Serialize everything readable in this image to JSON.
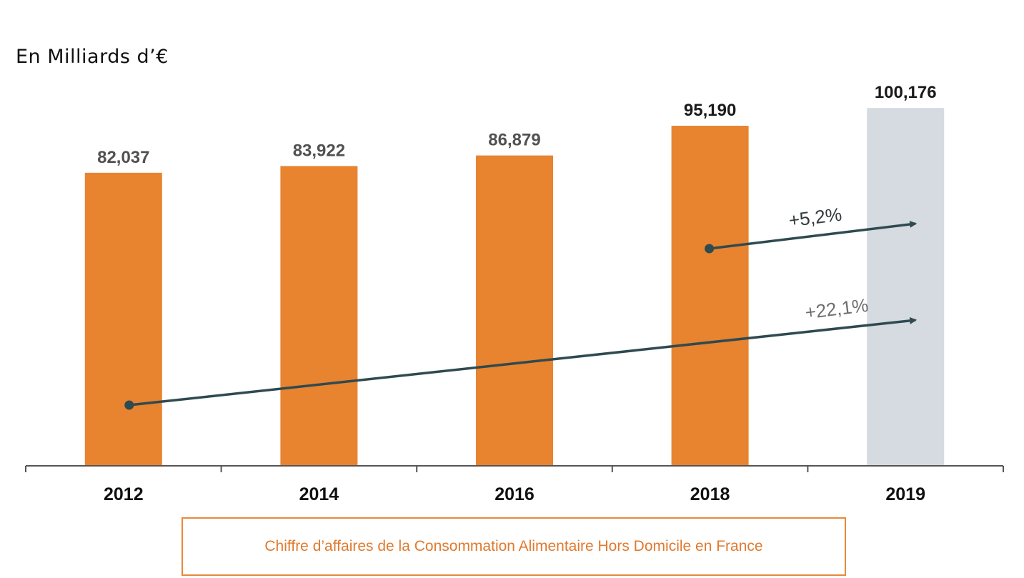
{
  "unit_label": "En Milliards d’€",
  "caption": "Chiffre d’affaires de la Consommation Alimentaire Hors Domicile en France",
  "colors": {
    "bar": "#e8832f",
    "bar_projected": "#d5dbe0",
    "arrow": "#2f4a50",
    "axis": "#555555"
  },
  "chart_data": {
    "type": "bar",
    "title": "",
    "xlabel": "",
    "ylabel": "En Milliards d’€",
    "categories": [
      "2012",
      "2014",
      "2016",
      "2018",
      "2019"
    ],
    "values": [
      82.037,
      83.922,
      86.879,
      95.19,
      100.176
    ],
    "value_labels": [
      "82,037",
      "83,922",
      "86,879",
      "95,190",
      "100,176"
    ],
    "blurred_labels": [
      true,
      true,
      true,
      false,
      false
    ],
    "projected": [
      false,
      false,
      false,
      false,
      true
    ],
    "ylim": [
      0,
      105
    ],
    "annotations": [
      {
        "text": "+5,2%",
        "from": "2018",
        "to": "2019",
        "blurred": false
      },
      {
        "text": "+22,1%",
        "from": "2012",
        "to": "2019",
        "blurred": true
      }
    ]
  }
}
